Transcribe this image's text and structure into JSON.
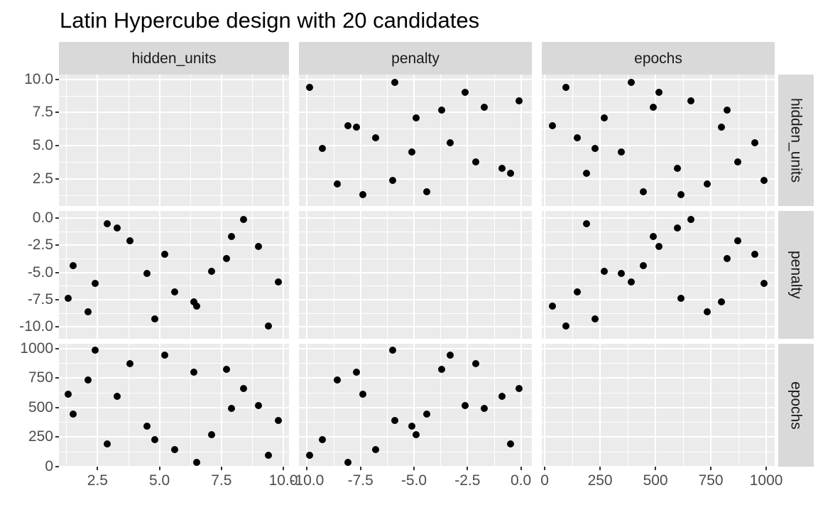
{
  "title": "Latin Hypercube design with 20 candidates",
  "chart_data": {
    "type": "scatter",
    "description": "3x3 facet-grid scatterplot matrix of a Latin Hypercube design with 20 candidate points; diagonal panels (same variable on both axes) are empty; grid on, no legend",
    "facet_cols": [
      "hidden_units",
      "penalty",
      "epochs"
    ],
    "facet_rows": [
      "hidden_units",
      "penalty",
      "epochs"
    ],
    "points": [
      {
        "hidden_units": 9.8,
        "penalty": -5.9,
        "epochs": 389
      },
      {
        "hidden_units": 9.4,
        "penalty": -9.9,
        "epochs": 97
      },
      {
        "hidden_units": 9.0,
        "penalty": -2.6,
        "epochs": 517
      },
      {
        "hidden_units": 8.4,
        "penalty": -0.1,
        "epochs": 661
      },
      {
        "hidden_units": 7.9,
        "penalty": -1.7,
        "epochs": 491
      },
      {
        "hidden_units": 7.7,
        "penalty": -3.7,
        "epochs": 823
      },
      {
        "hidden_units": 7.1,
        "penalty": -4.9,
        "epochs": 270
      },
      {
        "hidden_units": 6.5,
        "penalty": -8.1,
        "epochs": 36
      },
      {
        "hidden_units": 6.4,
        "penalty": -7.7,
        "epochs": 798
      },
      {
        "hidden_units": 5.6,
        "penalty": -6.8,
        "epochs": 146
      },
      {
        "hidden_units": 5.2,
        "penalty": -3.3,
        "epochs": 947
      },
      {
        "hidden_units": 4.8,
        "penalty": -9.3,
        "epochs": 226
      },
      {
        "hidden_units": 4.5,
        "penalty": -5.1,
        "epochs": 345
      },
      {
        "hidden_units": 3.8,
        "penalty": -2.1,
        "epochs": 871
      },
      {
        "hidden_units": 3.3,
        "penalty": -0.9,
        "epochs": 598
      },
      {
        "hidden_units": 2.9,
        "penalty": -0.5,
        "epochs": 189
      },
      {
        "hidden_units": 2.4,
        "penalty": -6.0,
        "epochs": 991
      },
      {
        "hidden_units": 2.1,
        "penalty": -8.6,
        "epochs": 734
      },
      {
        "hidden_units": 1.5,
        "penalty": -4.4,
        "epochs": 446
      },
      {
        "hidden_units": 1.3,
        "penalty": -7.4,
        "epochs": 616
      }
    ],
    "axes": {
      "hidden_units": {
        "ticks": [
          2.5,
          5,
          7.5,
          10
        ],
        "tick_labels": [
          "2.5",
          "5.0",
          "7.5",
          "10.0"
        ],
        "minor_ticks": [
          1.25,
          3.75,
          6.25,
          8.75
        ],
        "x_range": [
          0.94,
          10.23
        ],
        "y_range": [
          0.45,
          10.36
        ]
      },
      "penalty": {
        "ticks": [
          -10,
          -7.5,
          -5,
          -2.5,
          0
        ],
        "tick_labels": [
          "-10.0",
          "-7.5",
          "-5.0",
          "-2.5",
          "0.0"
        ],
        "minor_ticks": [
          -8.75,
          -6.25,
          -3.75,
          -1.25
        ],
        "x_range": [
          -10.38,
          0.51
        ],
        "y_range": [
          -11.1,
          0.65
        ]
      },
      "epochs": {
        "ticks": [
          0,
          250,
          500,
          750,
          1000
        ],
        "tick_labels": [
          "0",
          "250",
          "500",
          "750",
          "1000"
        ],
        "minor_ticks": [
          125,
          375,
          625,
          875
        ],
        "x_range": [
          -13,
          1038
        ],
        "y_range": [
          -2,
          1042
        ]
      }
    },
    "colors": {
      "background": "#FFFFFF",
      "panel_bg": "#EBEBEB",
      "gridline": "#FFFFFF",
      "strip_bg": "#D9D9D9",
      "strip_text": "#1A1A1A",
      "point": "#000000",
      "tick_label": "#4D4D4D",
      "tick_mark": "#333333",
      "title": "#000000"
    }
  }
}
